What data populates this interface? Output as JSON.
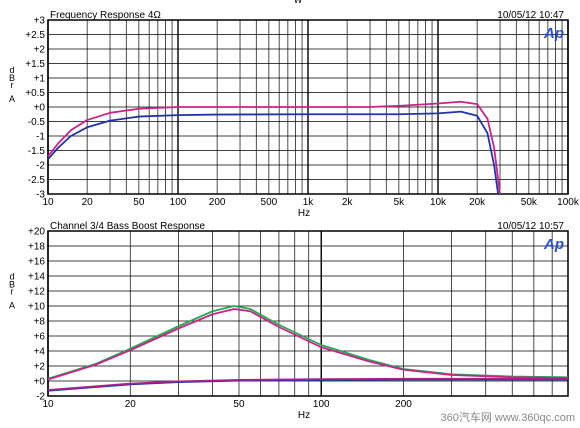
{
  "top_caption": "W",
  "watermark": "360汽车网 www.360qc.com",
  "logo_text": "Ap",
  "chart_data": [
    {
      "type": "line",
      "title": "Frequency Response 4Ω",
      "timestamp": "10/05/12 10:47",
      "xlabel": "Hz",
      "ylabel": "d B r A",
      "xscale": "log",
      "xlim": [
        10,
        100000
      ],
      "ylim": [
        -3,
        3
      ],
      "grid": true,
      "xticks": [
        {
          "v": 10,
          "label": "10"
        },
        {
          "v": 20,
          "label": "20"
        },
        {
          "v": 50,
          "label": "50"
        },
        {
          "v": 100,
          "label": "100"
        },
        {
          "v": 200,
          "label": "200"
        },
        {
          "v": 500,
          "label": "500"
        },
        {
          "v": 1000,
          "label": "1k"
        },
        {
          "v": 2000,
          "label": "2k"
        },
        {
          "v": 5000,
          "label": "5k"
        },
        {
          "v": 10000,
          "label": "10k"
        },
        {
          "v": 20000,
          "label": "20k"
        },
        {
          "v": 50000,
          "label": "50k"
        },
        {
          "v": 100000,
          "label": "100k"
        }
      ],
      "yticks": [
        {
          "v": 3,
          "label": "+3"
        },
        {
          "v": 2.5,
          "label": "+2.5"
        },
        {
          "v": 2,
          "label": "+2"
        },
        {
          "v": 1.5,
          "label": "+1.5"
        },
        {
          "v": 1,
          "label": "+1"
        },
        {
          "v": 0.5,
          "label": "+0.5"
        },
        {
          "v": 0,
          "label": "+0"
        },
        {
          "v": -0.5,
          "label": "-0.5"
        },
        {
          "v": -1,
          "label": "-1"
        },
        {
          "v": -1.5,
          "label": "-1.5"
        },
        {
          "v": -2,
          "label": "-2"
        },
        {
          "v": -2.5,
          "label": "-2.5"
        },
        {
          "v": -3,
          "label": "-3"
        }
      ],
      "series": [
        {
          "color": "#cc2288",
          "points": [
            [
              10,
              -1.7
            ],
            [
              12,
              -1.25
            ],
            [
              15,
              -0.8
            ],
            [
              20,
              -0.45
            ],
            [
              30,
              -0.2
            ],
            [
              50,
              -0.06
            ],
            [
              100,
              0
            ],
            [
              200,
              0
            ],
            [
              1000,
              0
            ],
            [
              3000,
              0
            ],
            [
              5000,
              0.04
            ],
            [
              10000,
              0.12
            ],
            [
              15000,
              0.18
            ],
            [
              20000,
              0.1
            ],
            [
              24000,
              -0.4
            ],
            [
              27000,
              -1.4
            ],
            [
              30000,
              -3
            ]
          ]
        },
        {
          "color": "#2233aa",
          "points": [
            [
              10,
              -1.8
            ],
            [
              12,
              -1.4
            ],
            [
              15,
              -1.0
            ],
            [
              20,
              -0.7
            ],
            [
              30,
              -0.47
            ],
            [
              50,
              -0.33
            ],
            [
              100,
              -0.28
            ],
            [
              200,
              -0.26
            ],
            [
              1000,
              -0.25
            ],
            [
              5000,
              -0.25
            ],
            [
              10000,
              -0.22
            ],
            [
              15000,
              -0.16
            ],
            [
              20000,
              -0.3
            ],
            [
              24000,
              -0.9
            ],
            [
              27000,
              -2.0
            ],
            [
              29000,
              -3
            ]
          ]
        }
      ]
    },
    {
      "type": "line",
      "title": "Channel 3/4 Bass Boost Response",
      "timestamp": "10/05/12 10:57",
      "xlabel": "Hz",
      "ylabel": "d B r A",
      "xscale": "log",
      "xlim": [
        10,
        800
      ],
      "ylim": [
        -2,
        20
      ],
      "grid": true,
      "xticks": [
        {
          "v": 10,
          "label": "10"
        },
        {
          "v": 20,
          "label": "20"
        },
        {
          "v": 50,
          "label": "50"
        },
        {
          "v": 100,
          "label": "100"
        },
        {
          "v": 200,
          "label": "200"
        }
      ],
      "yticks": [
        {
          "v": 20,
          "label": "+20"
        },
        {
          "v": 18,
          "label": "+18"
        },
        {
          "v": 16,
          "label": "+16"
        },
        {
          "v": 14,
          "label": "+14"
        },
        {
          "v": 12,
          "label": "+12"
        },
        {
          "v": 10,
          "label": "+10"
        },
        {
          "v": 8,
          "label": "+8"
        },
        {
          "v": 6,
          "label": "+6"
        },
        {
          "v": 4,
          "label": "+4"
        },
        {
          "v": 2,
          "label": "+2"
        },
        {
          "v": 0,
          "label": "+0"
        },
        {
          "v": -2,
          "label": "-2"
        }
      ],
      "series": [
        {
          "color": "#22aa55",
          "points": [
            [
              10,
              0.3
            ],
            [
              15,
              2.3
            ],
            [
              20,
              4.3
            ],
            [
              30,
              7.3
            ],
            [
              40,
              9.3
            ],
            [
              48,
              10
            ],
            [
              55,
              9.6
            ],
            [
              70,
              7.5
            ],
            [
              100,
              4.8
            ],
            [
              150,
              2.8
            ],
            [
              200,
              1.6
            ],
            [
              300,
              0.9
            ],
            [
              500,
              0.6
            ],
            [
              800,
              0.5
            ]
          ]
        },
        {
          "color": "#cc2288",
          "points": [
            [
              10,
              0.2
            ],
            [
              15,
              2.2
            ],
            [
              20,
              4.1
            ],
            [
              30,
              7.0
            ],
            [
              40,
              8.9
            ],
            [
              48,
              9.6
            ],
            [
              55,
              9.3
            ],
            [
              70,
              7.2
            ],
            [
              100,
              4.5
            ],
            [
              150,
              2.6
            ],
            [
              200,
              1.5
            ],
            [
              300,
              0.8
            ],
            [
              500,
              0.5
            ],
            [
              800,
              0.4
            ]
          ]
        },
        {
          "color": "#2233aa",
          "points": [
            [
              10,
              -1.3
            ],
            [
              15,
              -0.8
            ],
            [
              20,
              -0.45
            ],
            [
              30,
              -0.15
            ],
            [
              50,
              0.05
            ],
            [
              100,
              0.15
            ],
            [
              200,
              0.2
            ],
            [
              500,
              0.2
            ],
            [
              800,
              0.2
            ]
          ]
        },
        {
          "color": "#aa2288",
          "points": [
            [
              10,
              -1.2
            ],
            [
              15,
              -0.7
            ],
            [
              20,
              -0.35
            ],
            [
              30,
              -0.05
            ],
            [
              50,
              0.15
            ],
            [
              100,
              0.25
            ],
            [
              200,
              0.3
            ],
            [
              500,
              0.3
            ],
            [
              800,
              0.3
            ]
          ]
        }
      ]
    }
  ]
}
